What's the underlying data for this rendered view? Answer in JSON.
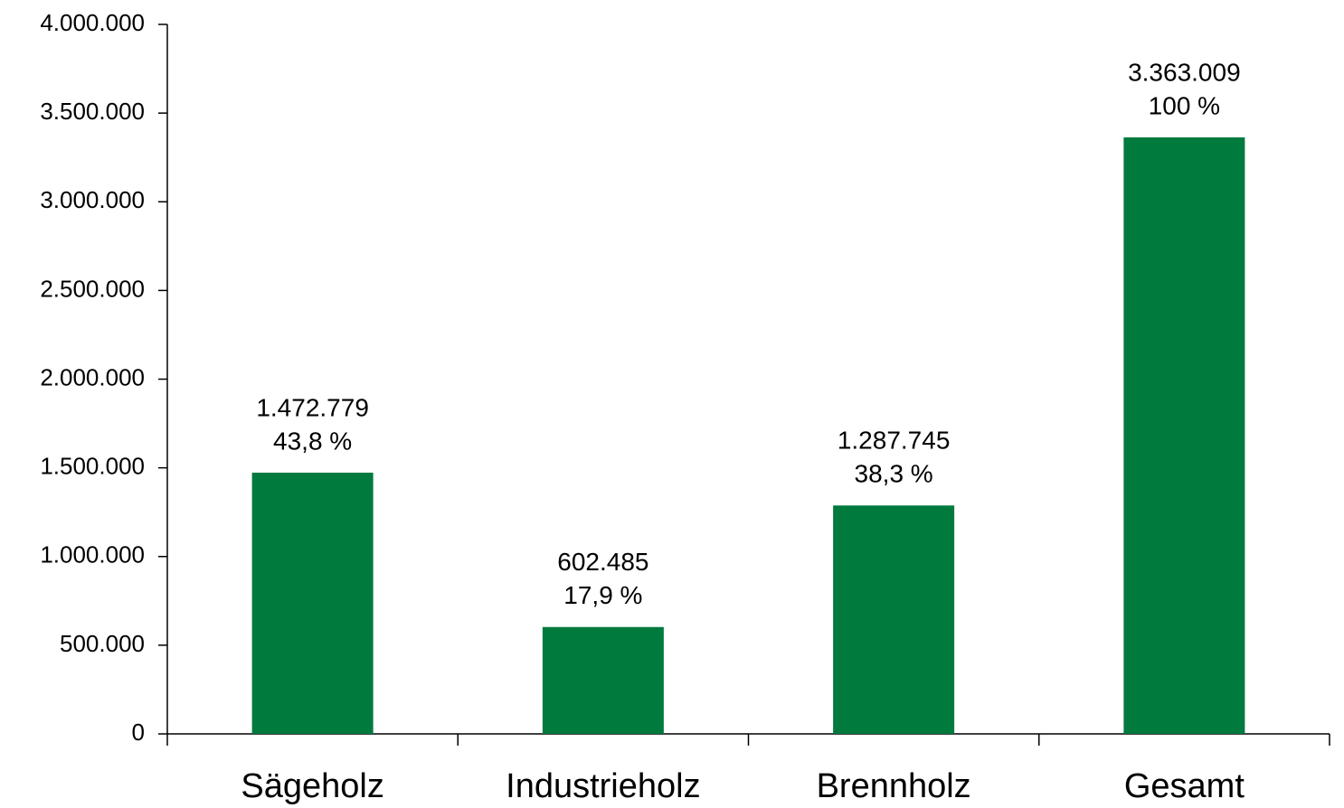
{
  "chart_data": {
    "type": "bar",
    "categories": [
      "Sägeholz",
      "Industrieholz",
      "Brennholz",
      "Gesamt"
    ],
    "values": [
      1472779,
      602485,
      1287745,
      3363009
    ],
    "value_labels": [
      "1.472.779",
      "602.485",
      "1.287.745",
      "3.363.009"
    ],
    "share_labels": [
      "43,8 %",
      "17,9 %",
      "38,3 %",
      "100 %"
    ],
    "color": "#007a3d",
    "ylim": [
      0,
      4000000
    ],
    "yticks": [
      0,
      {
        "value": 500000,
        "label": "500.000"
      },
      {
        "value": 1000000,
        "label": "1.000.000"
      },
      {
        "value": 1500000,
        "label": "1.500.000"
      },
      {
        "value": 2000000,
        "label": "2.000.000"
      },
      {
        "value": 2500000,
        "label": "2.500.000"
      },
      {
        "value": 3000000,
        "label": "3.000.000"
      },
      {
        "value": 3500000,
        "label": "3.500.000"
      },
      {
        "value": 4000000,
        "label": "4.000.000"
      }
    ],
    "grid": false
  }
}
